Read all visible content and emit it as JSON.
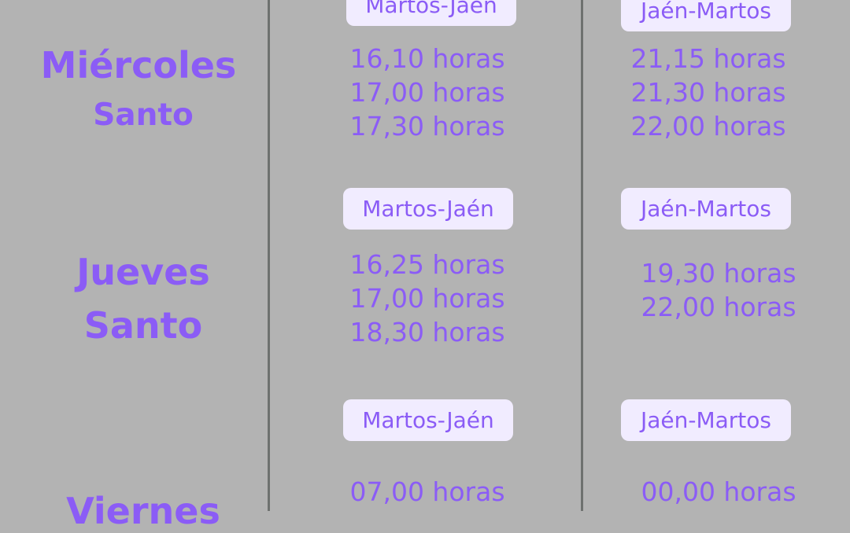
{
  "days": [
    {
      "name_line1": "Miércoles",
      "name_line2": "Santo",
      "outbound": {
        "route": "Martos-Jaén",
        "times": [
          "16,10 horas",
          "17,00 horas",
          "17,30 horas"
        ]
      },
      "inbound": {
        "route": "Jaén-Martos",
        "times": [
          "21,15 horas",
          "21,30 horas",
          "22,00 horas"
        ]
      }
    },
    {
      "name_line1": "Jueves",
      "name_line2": "Santo",
      "outbound": {
        "route": "Martos-Jaén",
        "times": [
          "16,25 horas",
          "17,00 horas",
          "18,30 horas"
        ]
      },
      "inbound": {
        "route": "Jaén-Martos",
        "times": [
          "19,30 horas",
          "22,00 horas"
        ]
      }
    },
    {
      "name_line1": "Viernes",
      "outbound": {
        "route": "Martos-Jaén",
        "times": [
          "07,00 horas"
        ]
      },
      "inbound": {
        "route": "Jaén-Martos",
        "times": [
          "00,00 horas"
        ]
      }
    }
  ],
  "colors": {
    "background": "#b3b3b3",
    "accent": "#8b5cf6",
    "pill": "#f1ecff",
    "divider": "#6e716f"
  }
}
